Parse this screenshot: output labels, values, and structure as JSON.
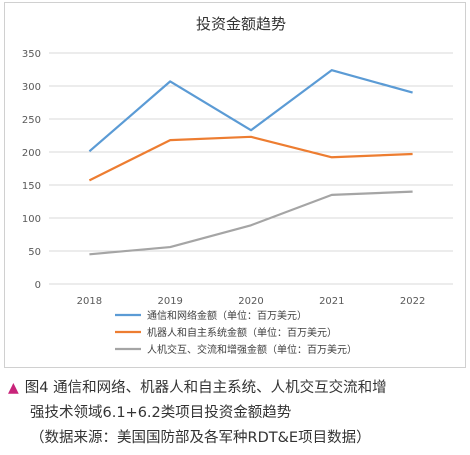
{
  "chart_data": {
    "type": "line",
    "title": "投资金额趋势",
    "categories": [
      "2018",
      "2019",
      "2020",
      "2021",
      "2022"
    ],
    "ylim": [
      0,
      350
    ],
    "yticks": [
      0,
      50,
      100,
      150,
      200,
      250,
      300,
      350
    ],
    "grid": true,
    "legend_position": "bottom",
    "series": [
      {
        "name": "通信和网络金额（单位：百万美元）",
        "values": [
          201,
          307,
          233,
          324,
          290
        ],
        "color": "#5b9bd5"
      },
      {
        "name": "机器人和自主系统金额（单位：百万美元）",
        "values": [
          157,
          218,
          223,
          192,
          197
        ],
        "color": "#ed7d31"
      },
      {
        "name": "人机交互、交流和增强金额（单位：百万美元）",
        "values": [
          45,
          56,
          89,
          135,
          140
        ],
        "color": "#a5a5a5"
      }
    ]
  },
  "caption": {
    "marker": "▲",
    "line1": "图4 通信和网络、机器人和自主系统、人机交互交流和增",
    "line2": "强技术领域6.1+6.2类项目投资金额趋势",
    "line3": "（数据来源：美国国防部及各军种RDT&E项目数据）"
  }
}
